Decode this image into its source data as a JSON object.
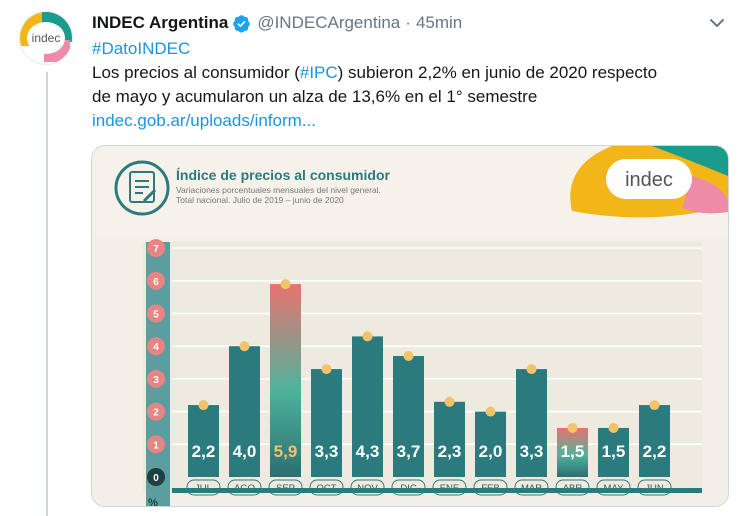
{
  "account": {
    "avatar_text": "indec",
    "name": "INDEC Argentina",
    "handle": "@INDECArgentina",
    "separator": "·",
    "time": "45min"
  },
  "tweet": {
    "hashtag": "#DatoINDEC",
    "line1_a": "Los precios al consumidor (",
    "ipc_tag": "#IPC",
    "line1_b": ") subieron 2,2% en junio de 2020 respecto",
    "line2": "de mayo y acumularon un alza de 13,6% en el 1° semestre",
    "link": "indec.gob.ar/uploads/inform..."
  },
  "infographic": {
    "title": "Índice de precios al consumidor",
    "subtitle_1": "Variaciones porcentuales mensuales del nivel general.",
    "subtitle_2": "Total nacional. Julio de 2019 – junio de 2020",
    "logo": "indec",
    "unit_label": "%",
    "year_1": "2019",
    "year_2": "2020"
  },
  "chart_data": {
    "type": "bar",
    "title": "Índice de precios al consumidor",
    "categories": [
      "JUL",
      "AGO",
      "SEP",
      "OCT",
      "NOV",
      "DIC",
      "ENE",
      "FEB",
      "MAR",
      "ABR",
      "MAY",
      "JUN"
    ],
    "values": [
      2.2,
      4.0,
      5.9,
      3.3,
      4.3,
      3.7,
      2.3,
      2.0,
      3.3,
      1.5,
      1.5,
      2.2
    ],
    "value_labels": [
      "2,2",
      "4,0",
      "5,9",
      "3,3",
      "4,3",
      "3,7",
      "2,3",
      "2,0",
      "3,3",
      "1,5",
      "1,5",
      "2,2"
    ],
    "y_ticks": [
      "0",
      "1",
      "2",
      "3",
      "4",
      "5",
      "6",
      "7"
    ],
    "ylim": [
      0,
      7
    ],
    "ylabel": "%",
    "grid": true,
    "highlighted": [
      "SEP",
      "ABR"
    ],
    "colors": {
      "bar": "#2b7b7e",
      "highlight_top": "#e8736f",
      "highlight_mid": "#4fb39c",
      "highlight_bottom": "#2b6f72",
      "marker": "#f1c46c",
      "axis_band": "#5a9ea0",
      "tick_circle": "#e98484",
      "value_gold": "#f1c46c"
    }
  }
}
